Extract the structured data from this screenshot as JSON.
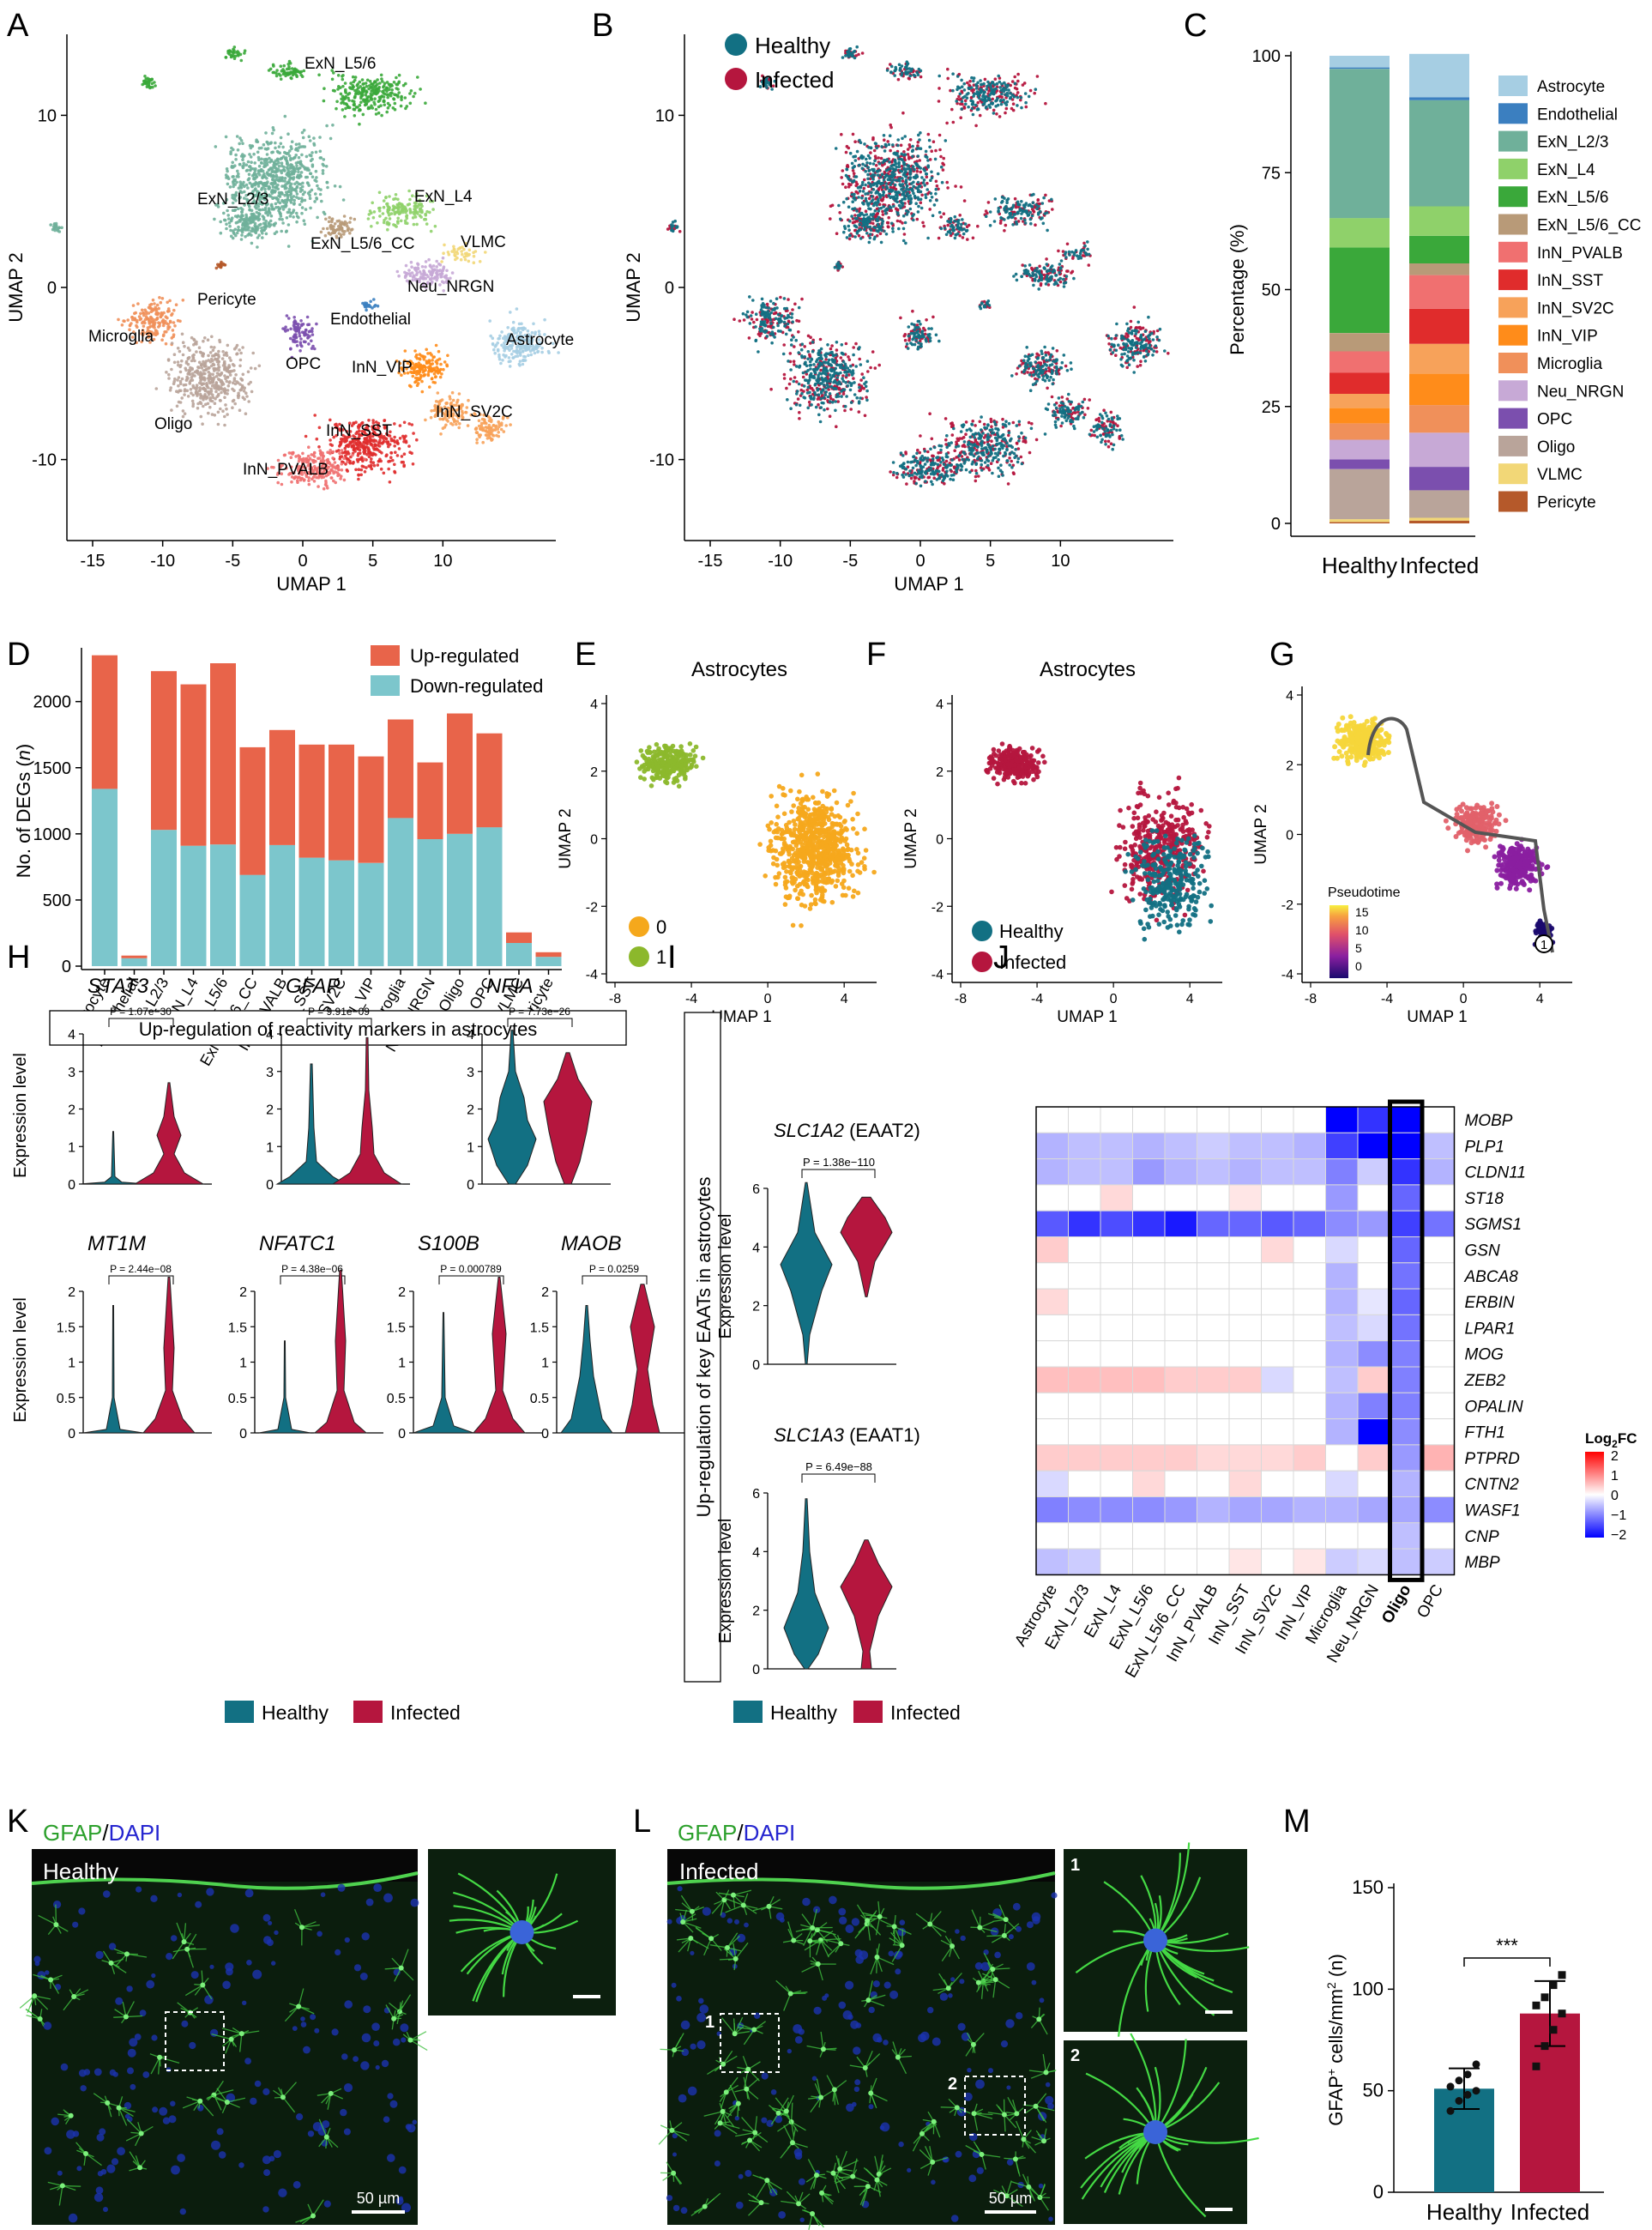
{
  "panel_letters": [
    "A",
    "B",
    "C",
    "D",
    "E",
    "F",
    "G",
    "H",
    "I",
    "J",
    "K",
    "L",
    "M"
  ],
  "celltypes": [
    "Astrocyte",
    "Endothelial",
    "ExN_L2/3",
    "ExN_L4",
    "ExN_L5/6",
    "ExN_L5/6_CC",
    "InN_PVALB",
    "InN_SST",
    "InN_SV2C",
    "InN_VIP",
    "Microglia",
    "Neu_NRGN",
    "OPC",
    "Oligo",
    "VLMC",
    "Pericyte"
  ],
  "celltype_colors": [
    "#a6cee3",
    "#3b7fc0",
    "#6fb09a",
    "#8fd16a",
    "#3aa83a",
    "#b89a78",
    "#f07070",
    "#e02c2c",
    "#f7a25a",
    "#ff8c1a",
    "#f0905a",
    "#c7a9d6",
    "#7b4fae",
    "#b9a49a",
    "#f2d777",
    "#b5592a"
  ],
  "panelA": {
    "xlabel": "UMAP 1",
    "ylabel": "UMAP 2",
    "xticks": [
      "-15",
      "-10",
      "-5",
      "0",
      "5",
      "10"
    ],
    "yticks": [
      "10",
      "0",
      "-10"
    ],
    "cluster_labels": [
      "ExN_L5/6",
      "ExN_L2/3",
      "ExN_L4",
      "ExN_L5/6_CC",
      "VLMC",
      "Neu_NRGN",
      "Pericyte",
      "Endothelial",
      "Microglia",
      "OPC",
      "Astrocyte",
      "InN_VIP",
      "InN_SV2C",
      "Oligo",
      "InN_SST",
      "InN_PVALB"
    ]
  },
  "panelB": {
    "xlabel": "UMAP 1",
    "ylabel": "UMAP 2",
    "xticks": [
      "-15",
      "-10",
      "-5",
      "0",
      "5",
      "10"
    ],
    "yticks": [
      "10",
      "0",
      "-10"
    ],
    "legend": [
      "Healthy",
      "Infected"
    ]
  },
  "colors": {
    "healthy": "#127083",
    "infected": "#b5163e",
    "up": "#e8644a",
    "down": "#7cc6cc"
  },
  "panelC": {
    "ylabel": "Percentage (%)",
    "yticks": [
      "0",
      "25",
      "50",
      "75",
      "100"
    ],
    "groups": [
      "Healthy",
      "Infected"
    ]
  },
  "chart_data": [
    {
      "type": "bar",
      "stacked": true,
      "panel": "C",
      "categories": [
        "Healthy",
        "Infected"
      ],
      "ylabel": "Percentage (%)",
      "ylim": [
        0,
        100
      ],
      "series": [
        {
          "name": "Astrocyte",
          "values": [
            2.5,
            9.3
          ]
        },
        {
          "name": "Endothelial",
          "values": [
            0.3,
            0.6
          ]
        },
        {
          "name": "ExN_L2/3",
          "values": [
            31.9,
            22.7
          ]
        },
        {
          "name": "ExN_L4",
          "values": [
            6.3,
            6.3
          ]
        },
        {
          "name": "ExN_L5/6",
          "values": [
            18.3,
            5.9
          ]
        },
        {
          "name": "ExN_L5/6_CC",
          "values": [
            3.9,
            2.5
          ]
        },
        {
          "name": "InN_PVALB",
          "values": [
            4.6,
            7.2
          ]
        },
        {
          "name": "InN_SST",
          "values": [
            4.5,
            7.5
          ]
        },
        {
          "name": "InN_SV2C",
          "values": [
            3.0,
            6.4
          ]
        },
        {
          "name": "InN_VIP",
          "values": [
            3.3,
            6.7
          ]
        },
        {
          "name": "Microglia",
          "values": [
            3.5,
            5.9
          ]
        },
        {
          "name": "Neu_NRGN",
          "values": [
            4.2,
            7.3
          ]
        },
        {
          "name": "OPC",
          "values": [
            2.1,
            5.0
          ]
        },
        {
          "name": "Oligo",
          "values": [
            10.7,
            5.9
          ]
        },
        {
          "name": "VLMC",
          "values": [
            0.6,
            0.6
          ]
        },
        {
          "name": "Pericyte",
          "values": [
            0.3,
            0.6
          ]
        }
      ]
    },
    {
      "type": "bar",
      "stacked": true,
      "panel": "D",
      "categories": [
        "Astrocyte",
        "Endothelial",
        "ExN_L2/3",
        "ExN_L4",
        "ExN_L5/6",
        "ExN_L5/6_CC",
        "InN_PVALB",
        "InN_SST",
        "InN_SV2C",
        "InN_VIP",
        "Microglia",
        "Neu_NRGN",
        "Oligo",
        "OPC",
        "VLMC",
        "Pericyte"
      ],
      "ylabel": "No. of DEGs (n)",
      "ylim": [
        0,
        2400
      ],
      "series": [
        {
          "name": "Down-regulated",
          "values": [
            1340,
            60,
            1030,
            910,
            920,
            690,
            915,
            820,
            800,
            780,
            1120,
            960,
            1000,
            1050,
            175,
            70
          ]
        },
        {
          "name": "Up-regulated",
          "values": [
            1010,
            20,
            1200,
            1220,
            1370,
            965,
            870,
            855,
            875,
            805,
            745,
            580,
            910,
            710,
            80,
            35
          ]
        }
      ]
    },
    {
      "type": "bar",
      "panel": "M",
      "categories": [
        "Healthy",
        "Infected"
      ],
      "ylabel": "GFAP+ cells/mm2 (n)",
      "ylim": [
        0,
        150
      ],
      "values": [
        51,
        88
      ],
      "errors": [
        10,
        16
      ],
      "points": [
        [
          40,
          45,
          48,
          50,
          52,
          55,
          58,
          63
        ],
        [
          62,
          72,
          80,
          88,
          92,
          96,
          102,
          107
        ]
      ]
    },
    {
      "type": "heatmap",
      "panel": "J",
      "title": "Log2FC",
      "rows": [
        "MOBP",
        "PLP1",
        "CLDN11",
        "ST18",
        "SGMS1",
        "GSN",
        "ABCA8",
        "ERBIN",
        "LPAR1",
        "MOG",
        "ZEB2",
        "OPALIN",
        "FTH1",
        "PTPRD",
        "CNTN2",
        "WASF1",
        "CNP",
        "MBP"
      ],
      "cols": [
        "Astrocyte",
        "ExN_L2/3",
        "ExN_L4",
        "ExN_L5/6",
        "ExN_L5/6_CC",
        "InN_PVALB",
        "InN_SST",
        "InN_SV2C",
        "InN_VIP",
        "Microglia",
        "Neu_NRGN",
        "Oligo",
        "OPC"
      ],
      "scale": [
        -2,
        2
      ],
      "values": [
        [
          0,
          0,
          0,
          0,
          0,
          0,
          0,
          0,
          0,
          -2,
          -1.6,
          -2,
          0
        ],
        [
          -0.6,
          -0.5,
          -0.5,
          -0.6,
          -0.5,
          -0.4,
          -0.5,
          -0.5,
          -0.6,
          -1.5,
          -2.2,
          -2.3,
          -0.5
        ],
        [
          -0.6,
          -0.5,
          -0.5,
          -0.8,
          -0.6,
          -0.5,
          -0.6,
          -0.5,
          -0.5,
          -1.0,
          -0.4,
          -1.6,
          -0.6
        ],
        [
          0,
          0,
          0.3,
          0,
          0,
          0,
          0.2,
          0,
          0,
          -0.8,
          0,
          -1.2,
          0
        ],
        [
          -1.3,
          -1.6,
          -1.4,
          -1.6,
          -1.8,
          -1.2,
          -1.2,
          -1.3,
          -1.2,
          -0.9,
          -0.8,
          -1.5,
          -1.1
        ],
        [
          0.4,
          0,
          0,
          0,
          0,
          0,
          0,
          0.3,
          0,
          -0.3,
          0,
          -1.2,
          0
        ],
        [
          0,
          0,
          0,
          0,
          0,
          0,
          0,
          0,
          0,
          -0.6,
          0,
          -1.1,
          0
        ],
        [
          0.3,
          0,
          0,
          0,
          0,
          0,
          0,
          0,
          0,
          -0.6,
          -0.2,
          -1.2,
          0
        ],
        [
          0,
          0,
          0,
          0,
          0,
          0,
          0,
          0,
          0,
          -0.5,
          -0.3,
          -1.1,
          0
        ],
        [
          0,
          0,
          0,
          0,
          0,
          0,
          0,
          0,
          0,
          -0.6,
          -0.9,
          -1.0,
          0
        ],
        [
          0.5,
          0.5,
          0.5,
          0.5,
          0.4,
          0.4,
          0.4,
          -0.3,
          0,
          -0.5,
          0.4,
          -1.0,
          0
        ],
        [
          0,
          0,
          0,
          0,
          0,
          0,
          0,
          0,
          0,
          -0.6,
          -1.0,
          -1.0,
          0
        ],
        [
          0,
          0,
          0,
          0,
          0,
          0,
          0,
          0,
          0,
          -0.6,
          -2.2,
          -0.9,
          0
        ],
        [
          0.4,
          0.4,
          0.4,
          0.4,
          0.4,
          0.3,
          0.3,
          0.3,
          0.4,
          0,
          0.4,
          -0.8,
          0.6
        ],
        [
          -0.3,
          0,
          0,
          0.3,
          0,
          0,
          0.3,
          0,
          0,
          -0.3,
          0,
          -0.6,
          0
        ],
        [
          -1.0,
          -0.9,
          -0.9,
          -0.9,
          -0.8,
          -0.6,
          -0.7,
          -0.7,
          -0.6,
          -0.6,
          -0.7,
          -0.7,
          -0.9
        ],
        [
          0,
          0,
          0,
          0,
          0,
          0,
          0,
          0,
          0,
          0,
          0,
          -0.5,
          0
        ],
        [
          -0.5,
          -0.4,
          0,
          0,
          0,
          0,
          0.2,
          0,
          0.2,
          -0.4,
          -0.3,
          -0.5,
          -0.4
        ]
      ]
    }
  ],
  "panelD": {
    "ylabel_pre": "No. of DEGs (",
    "ylabel_n": "n",
    "ylabel_post": ")",
    "yticks": [
      "0",
      "500",
      "1000",
      "1500",
      "2000"
    ],
    "legend": [
      "Up-regulated",
      "Down-regulated"
    ]
  },
  "panelE": {
    "title": "Up-regulation of reactivity markers in astrocytes",
    "ylabel": "Expression level",
    "genes": [
      "STAT3",
      "GFAP",
      "NFIA",
      "MT1M",
      "NFATC1",
      "S100B",
      "MAOB"
    ],
    "pvalues": [
      "P = 1.07e−30",
      "P = 9.91e−09",
      "P = 7.73e−26",
      "P = 2.44e−08",
      "P = 4.38e−06",
      "P = 0.000789",
      "P = 0.0259"
    ],
    "legend": [
      "Healthy",
      "Infected"
    ],
    "yticks_top": [
      "0",
      "1",
      "2",
      "3",
      "4"
    ],
    "yticks_bot": [
      "0",
      "0.5",
      "1",
      "1.5",
      "2"
    ]
  },
  "panelF": {
    "side_title": "Up-regulation of key EAATs in astrocytes",
    "ylabel": "Expression level",
    "genes": [
      "SLC1A2",
      "SLC1A3"
    ],
    "gene_suffix": [
      " (EAAT2)",
      " (EAAT1)"
    ],
    "pvalues": [
      "P = 1.38e−110",
      "P = 6.49e−88"
    ],
    "yticks": [
      "0",
      "2",
      "4",
      "6"
    ],
    "legend": [
      "Healthy",
      "Infected"
    ]
  },
  "panelG": {
    "title": "Astrocytes",
    "xlabel": "UMAP 1",
    "ylabel": "UMAP 2",
    "legend": [
      "0",
      "1"
    ],
    "xticks": [
      "-8",
      "-4",
      "0",
      "4"
    ],
    "yticks": [
      "4",
      "2",
      "0",
      "-2",
      "-4"
    ],
    "colors": [
      "#f5a81c",
      "#8cb82c"
    ]
  },
  "panelH": {
    "title": "Astrocytes",
    "xlabel": "UMAP 1",
    "ylabel": "UMAP 2",
    "legend": [
      "Healthy",
      "Infected"
    ],
    "xticks": [
      "-8",
      "-4",
      "0",
      "4"
    ],
    "yticks": [
      "4",
      "2",
      "0",
      "-2",
      "-4"
    ]
  },
  "panelI": {
    "xlabel": "UMAP 1",
    "ylabel": "UMAP 2",
    "legend_title": "Pseudotime",
    "legend_ticks": [
      "15",
      "10",
      "5",
      "0"
    ],
    "node_label": "1",
    "xticks": [
      "-8",
      "-4",
      "0",
      "4"
    ],
    "yticks": [
      "4",
      "2",
      "0",
      "-2",
      "-4"
    ]
  },
  "panelJ": {
    "legend_title_pre": "Log",
    "legend_title_sub": "2",
    "legend_title_post": "FC",
    "legend_ticks": [
      "2",
      "1",
      "0",
      "−1",
      "−2"
    ],
    "bold_col": "Oligo"
  },
  "panelK": {
    "stain_green": "GFAP",
    "stain_slash": "/",
    "stain_blue": "DAPI",
    "condition": "Healthy",
    "scalebar": "50 µm"
  },
  "panelL": {
    "stain_green": "GFAP",
    "stain_slash": "/",
    "stain_blue": "DAPI",
    "condition": "Infected",
    "scalebar": "50 µm",
    "inset_labels": [
      "1",
      "2"
    ]
  },
  "panelM": {
    "ylabel_pre": "GFAP",
    "ylabel_sup": "+",
    "ylabel_mid": " cells/mm",
    "ylabel_sup2": "2",
    "ylabel_post": " (n)",
    "yticks": [
      "0",
      "50",
      "100",
      "150"
    ],
    "groups": [
      "Healthy",
      "Infected"
    ],
    "significance": "***"
  }
}
